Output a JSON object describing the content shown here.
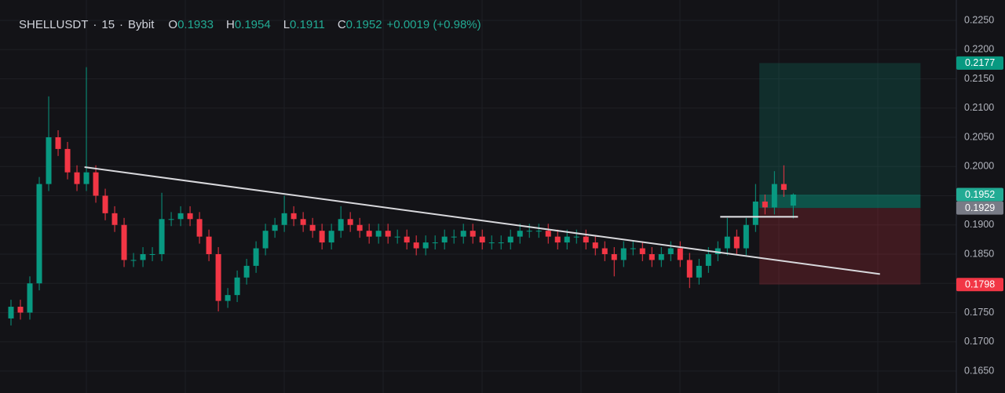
{
  "chart_data": {
    "type": "candlestick",
    "header": {
      "symbol": "SHELLUSDT",
      "interval": "15",
      "exchange": "Bybit",
      "ohlc_labels": [
        "O",
        "H",
        "L",
        "C"
      ],
      "ohlc": [
        0.1933,
        0.1954,
        0.1911,
        0.1952
      ],
      "change": "+0.0019 (+0.98%)"
    },
    "colors": {
      "up": "#089981",
      "down": "#f23645"
    },
    "xlim": [
      0,
      100.8
    ],
    "ylim": [
      0.16124,
      0.22849
    ],
    "yticks": [
      {
        "value": 0.165,
        "label": "0.1650"
      },
      {
        "value": 0.17,
        "label": "0.1700"
      },
      {
        "value": 0.175,
        "label": "0.1750"
      },
      {
        "value": 0.18,
        "label": "0.1800"
      },
      {
        "value": 0.185,
        "label": "0.1850"
      },
      {
        "value": 0.19,
        "label": "0.1900"
      },
      {
        "value": 0.195,
        "label": "0.1950"
      },
      {
        "value": 0.2,
        "label": "0.2000"
      },
      {
        "value": 0.205,
        "label": "0.2050"
      },
      {
        "value": 0.21,
        "label": "0.2100"
      },
      {
        "value": 0.215,
        "label": "0.2150"
      },
      {
        "value": 0.22,
        "label": "0.2200"
      },
      {
        "value": 0.225,
        "label": "0.2250"
      }
    ],
    "grid": true,
    "open": [
      0.174,
      0.176,
      0.175,
      0.18,
      0.197,
      0.205,
      0.203,
      0.199,
      0.197,
      0.199,
      0.195,
      0.192,
      0.19,
      0.184,
      0.184,
      0.185,
      0.185,
      0.191,
      0.191,
      0.192,
      0.191,
      0.188,
      0.185,
      0.177,
      0.178,
      0.181,
      0.183,
      0.186,
      0.189,
      0.19,
      0.192,
      0.191,
      0.19,
      0.189,
      0.187,
      0.189,
      0.191,
      0.19,
      0.189,
      0.188,
      0.189,
      0.188,
      0.188,
      0.187,
      0.186,
      0.187,
      0.187,
      0.188,
      0.188,
      0.189,
      0.188,
      0.187,
      0.187,
      0.187,
      0.188,
      0.189,
      0.189,
      0.189,
      0.188,
      0.187,
      0.188,
      0.188,
      0.187,
      0.186,
      0.185,
      0.184,
      0.186,
      0.186,
      0.185,
      0.184,
      0.185,
      0.186,
      0.184,
      0.181,
      0.183,
      0.185,
      0.186,
      0.188,
      0.186,
      0.19,
      0.194,
      0.193,
      0.197,
      0.1933
    ],
    "high": [
      0.1772,
      0.1772,
      0.1812,
      0.1982,
      0.212,
      0.2062,
      0.2042,
      0.2002,
      0.217,
      0.2002,
      0.1962,
      0.1932,
      0.1912,
      0.1852,
      0.1862,
      0.1862,
      0.1955,
      0.1922,
      0.1932,
      0.1932,
      0.1922,
      0.1892,
      0.1862,
      0.1792,
      0.1822,
      0.1842,
      0.1872,
      0.1902,
      0.1912,
      0.195,
      0.1932,
      0.1922,
      0.1912,
      0.1902,
      0.1902,
      0.1932,
      0.1922,
      0.1912,
      0.1902,
      0.1902,
      0.1902,
      0.1892,
      0.1892,
      0.1882,
      0.1882,
      0.1882,
      0.1892,
      0.1892,
      0.1902,
      0.1902,
      0.1892,
      0.1882,
      0.1882,
      0.1892,
      0.1902,
      0.1902,
      0.1902,
      0.1902,
      0.1892,
      0.1892,
      0.1892,
      0.1892,
      0.1882,
      0.1872,
      0.1862,
      0.1872,
      0.1872,
      0.1872,
      0.1862,
      0.1862,
      0.1872,
      0.1872,
      0.1852,
      0.1842,
      0.1862,
      0.1872,
      0.1912,
      0.1892,
      0.1912,
      0.197,
      0.1952,
      0.1992,
      0.2002,
      0.1954
    ],
    "low": [
      0.1728,
      0.1738,
      0.1738,
      0.1788,
      0.1958,
      0.2018,
      0.1978,
      0.1958,
      0.1958,
      0.1938,
      0.1908,
      0.1888,
      0.1828,
      0.1828,
      0.1828,
      0.1838,
      0.1838,
      0.1898,
      0.1898,
      0.1898,
      0.1868,
      0.1838,
      0.1752,
      0.1758,
      0.1768,
      0.1798,
      0.1818,
      0.1848,
      0.1878,
      0.1888,
      0.1898,
      0.1888,
      0.1878,
      0.1858,
      0.1858,
      0.1878,
      0.1888,
      0.1878,
      0.1868,
      0.1868,
      0.1868,
      0.1868,
      0.1858,
      0.1848,
      0.1848,
      0.1858,
      0.1858,
      0.1868,
      0.1868,
      0.1868,
      0.1858,
      0.1858,
      0.1858,
      0.1858,
      0.1868,
      0.1878,
      0.1878,
      0.1868,
      0.1858,
      0.1858,
      0.1868,
      0.1858,
      0.1848,
      0.1838,
      0.1812,
      0.1828,
      0.1848,
      0.1838,
      0.1828,
      0.1828,
      0.1838,
      0.1828,
      0.1792,
      0.1798,
      0.1818,
      0.1838,
      0.1848,
      0.1848,
      0.1848,
      0.1888,
      0.1918,
      0.1918,
      0.1948,
      0.1911
    ],
    "close": [
      0.176,
      0.175,
      0.18,
      0.197,
      0.205,
      0.203,
      0.199,
      0.197,
      0.199,
      0.195,
      0.192,
      0.19,
      0.184,
      0.184,
      0.185,
      0.185,
      0.191,
      0.191,
      0.192,
      0.191,
      0.188,
      0.185,
      0.177,
      0.178,
      0.181,
      0.183,
      0.186,
      0.189,
      0.19,
      0.192,
      0.191,
      0.19,
      0.189,
      0.187,
      0.189,
      0.191,
      0.19,
      0.189,
      0.188,
      0.189,
      0.188,
      0.188,
      0.187,
      0.186,
      0.187,
      0.187,
      0.188,
      0.188,
      0.189,
      0.188,
      0.187,
      0.187,
      0.187,
      0.188,
      0.189,
      0.189,
      0.189,
      0.188,
      0.187,
      0.188,
      0.188,
      0.187,
      0.186,
      0.185,
      0.184,
      0.186,
      0.186,
      0.185,
      0.184,
      0.185,
      0.186,
      0.184,
      0.181,
      0.183,
      0.185,
      0.186,
      0.188,
      0.186,
      0.19,
      0.194,
      0.193,
      0.197,
      0.196,
      0.1952
    ],
    "trendline": {
      "x": [
        8.3,
        92.7
      ],
      "y": [
        0.1999,
        0.1816
      ]
    },
    "level": {
      "x": [
        75.75,
        84
      ],
      "y": 0.1914
    },
    "position": {
      "x": [
        79.9,
        97
      ],
      "target": 0.2177,
      "current": 0.1952,
      "entry": 0.1929,
      "stop": 0.1798
    },
    "price_labels": [
      {
        "value": 0.2177,
        "color": "#089981"
      },
      {
        "value": 0.1952,
        "color": "#22ab94"
      },
      {
        "value": 0.1929,
        "color": "#787b86"
      },
      {
        "value": 0.1798,
        "color": "#f23645"
      }
    ]
  }
}
